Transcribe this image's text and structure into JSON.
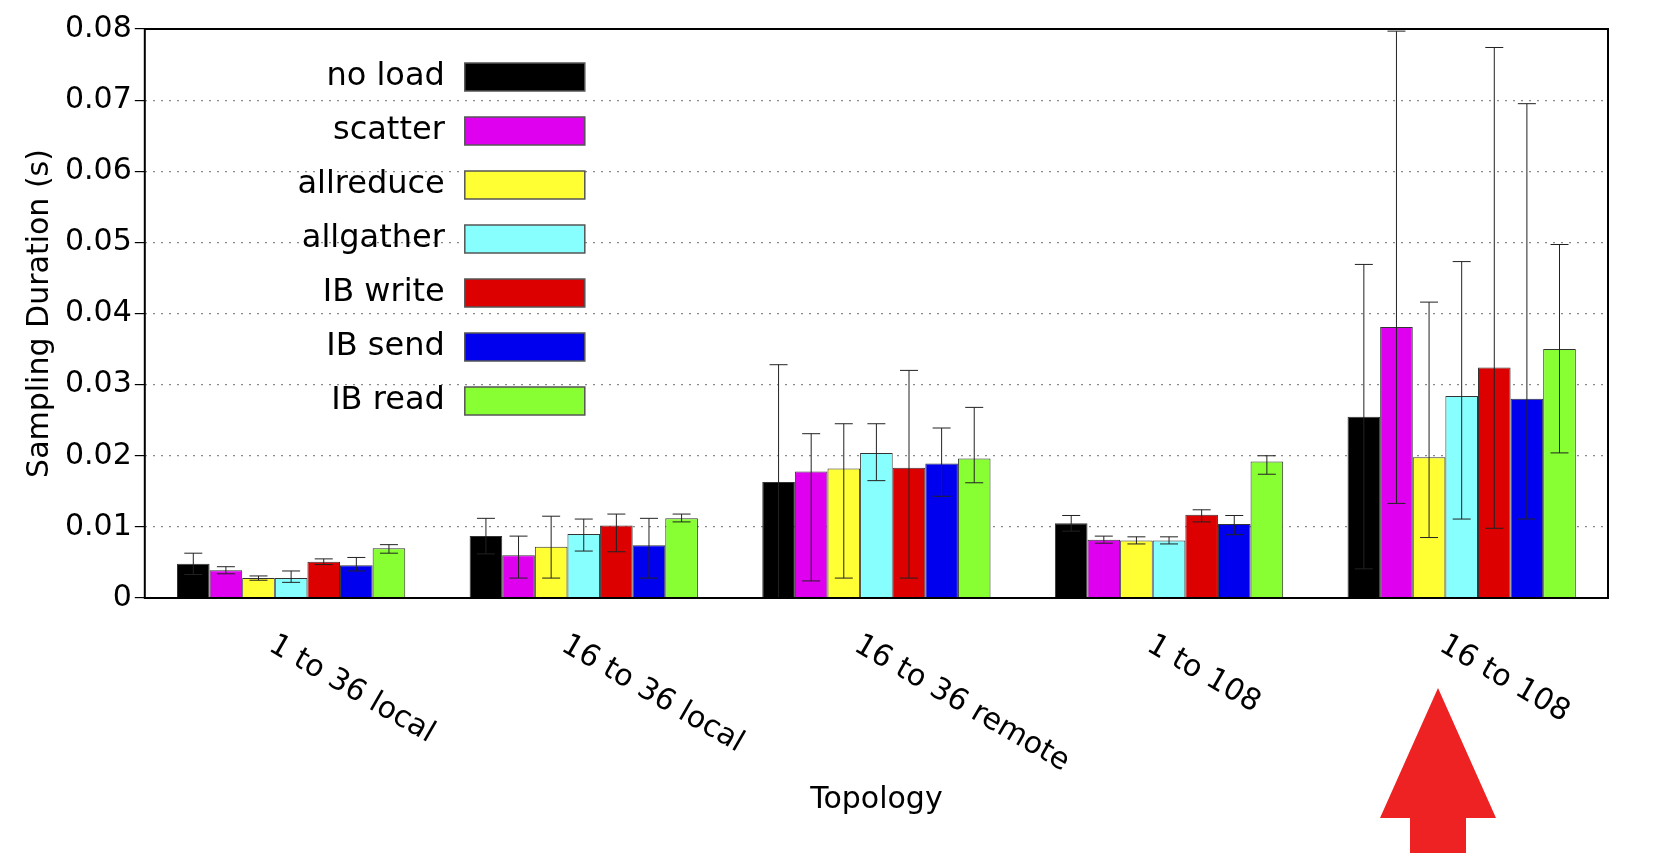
{
  "chart_data": {
    "type": "bar",
    "xlabel": "Topology",
    "ylabel": "Sampling Duration (s)",
    "categories": [
      "1 to 36 local",
      "16 to 36 local",
      "16 to 36 remote",
      "1 to 108",
      "16 to 108"
    ],
    "ylim": [
      0,
      0.08
    ],
    "yticks": [
      0,
      0.01,
      0.02,
      0.03,
      0.04,
      0.05,
      0.06,
      0.07,
      0.08
    ],
    "grid": "y",
    "legend": "top left",
    "series": [
      {
        "name": "no load",
        "color": "#000000",
        "values": [
          0.0048,
          0.0087,
          0.0163,
          0.0105,
          0.0255
        ],
        "errors": [
          [
            0.0033,
            0.0063
          ],
          [
            0.0062,
            0.0112
          ],
          [
            0,
            0.0328
          ],
          [
            0.0094,
            0.0116
          ],
          [
            0.0041,
            0.0469
          ]
        ]
      },
      {
        "name": "scatter",
        "color": "#e000f0",
        "values": [
          0.0039,
          0.006,
          0.0178,
          0.0082,
          0.0381
        ],
        "errors": [
          [
            0.0034,
            0.0044
          ],
          [
            0.0028,
            0.0087
          ],
          [
            0.0024,
            0.0231
          ],
          [
            0.0077,
            0.0087
          ],
          [
            0.0133,
            0.0797
          ]
        ]
      },
      {
        "name": "allreduce",
        "color": "#ffff33",
        "values": [
          0.0028,
          0.0072,
          0.0182,
          0.0081,
          0.0198
        ],
        "errors": [
          [
            0.0025,
            0.0031
          ],
          [
            0.0028,
            0.0115
          ],
          [
            0.0028,
            0.0245
          ],
          [
            0.0076,
            0.0086
          ],
          [
            0.0085,
            0.0416
          ]
        ]
      },
      {
        "name": "allgather",
        "color": "#88ffff",
        "values": [
          0.0028,
          0.009,
          0.0204,
          0.0081,
          0.0284
        ],
        "errors": [
          [
            0.0022,
            0.0038
          ],
          [
            0.0066,
            0.0111
          ],
          [
            0.0165,
            0.0245
          ],
          [
            0.0076,
            0.0086
          ],
          [
            0.0111,
            0.0473
          ]
        ]
      },
      {
        "name": "IB write",
        "color": "#dd0000",
        "values": [
          0.0051,
          0.0102,
          0.0183,
          0.0117,
          0.0324
        ],
        "errors": [
          [
            0.0047,
            0.0055
          ],
          [
            0.0065,
            0.0118
          ],
          [
            0.0028,
            0.032
          ],
          [
            0.0107,
            0.0124
          ],
          [
            0.0098,
            0.0774
          ]
        ]
      },
      {
        "name": "IB send",
        "color": "#0000ee",
        "values": [
          0.0046,
          0.0074,
          0.0189,
          0.0104,
          0.028
        ],
        "errors": [
          [
            0.0038,
            0.0057
          ],
          [
            0.0028,
            0.0112
          ],
          [
            0.0143,
            0.0239
          ],
          [
            0.0089,
            0.0116
          ],
          [
            0.0111,
            0.0695
          ]
        ]
      },
      {
        "name": "IB read",
        "color": "#88ff33",
        "values": [
          0.007,
          0.0112,
          0.0196,
          0.0192,
          0.035
        ],
        "errors": [
          [
            0.0063,
            0.0075
          ],
          [
            0.0107,
            0.0118
          ],
          [
            0.0162,
            0.0268
          ],
          [
            0.0174,
            0.02
          ],
          [
            0.0204,
            0.0497
          ]
        ]
      }
    ]
  }
}
